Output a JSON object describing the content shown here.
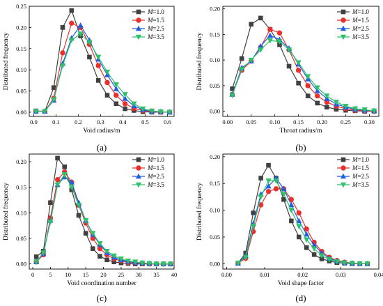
{
  "chart_data": [
    {
      "type": "line",
      "panel_label": "(a)",
      "xlabel": "Void radius/m",
      "ylabel": "Distributed frequency",
      "xlim": [
        -0.02,
        0.63
      ],
      "ylim": [
        -0.01,
        0.25
      ],
      "xticks": [
        "0.0",
        "0.1",
        "0.2",
        "0.3",
        "0.4",
        "0.5",
        "0.6"
      ],
      "yticks": [
        "0.00",
        "0.05",
        "0.10",
        "0.15",
        "0.20",
        "0.25"
      ],
      "legend_position": "top-right",
      "x": [
        0.01,
        0.05,
        0.09,
        0.13,
        0.17,
        0.21,
        0.25,
        0.29,
        0.33,
        0.37,
        0.41,
        0.45,
        0.49,
        0.53,
        0.57,
        0.61
      ],
      "series": [
        {
          "name": "M=1.0",
          "name_parts": [
            "M",
            "=1.0"
          ],
          "color": "#404040",
          "marker": "square",
          "values": [
            0.003,
            0.002,
            0.058,
            0.2,
            0.24,
            0.18,
            0.13,
            0.075,
            0.04,
            0.02,
            0.008,
            0.004,
            0.001,
            0.0,
            0.0,
            0.0
          ]
        },
        {
          "name": "M=1.5",
          "name_parts": [
            "M",
            "=1.5"
          ],
          "color": "#e8302d",
          "marker": "circle",
          "values": [
            0.002,
            0.002,
            0.033,
            0.14,
            0.21,
            0.2,
            0.16,
            0.11,
            0.07,
            0.04,
            0.02,
            0.009,
            0.004,
            0.001,
            0.0,
            0.0
          ]
        },
        {
          "name": "M=2.5",
          "name_parts": [
            "M",
            "=2.5"
          ],
          "color": "#1f5fe0",
          "marker": "triangle-up",
          "values": [
            0.002,
            0.002,
            0.028,
            0.115,
            0.175,
            0.205,
            0.17,
            0.125,
            0.088,
            0.055,
            0.032,
            0.015,
            0.006,
            0.002,
            0.001,
            0.0
          ]
        },
        {
          "name": "M=3.5",
          "name_parts": [
            "M",
            "=3.5"
          ],
          "color": "#2fc06a",
          "marker": "triangle-down",
          "values": [
            0.002,
            0.002,
            0.03,
            0.11,
            0.17,
            0.185,
            0.165,
            0.13,
            0.095,
            0.065,
            0.042,
            0.02,
            0.008,
            0.003,
            0.001,
            0.0
          ]
        }
      ]
    },
    {
      "type": "line",
      "panel_label": "(b)",
      "xlabel": "Throat radius/m",
      "ylabel": "Distributed frequency",
      "xlim": [
        -0.01,
        0.32
      ],
      "ylim": [
        -0.01,
        0.205
      ],
      "xticks": [
        "0.00",
        "0.05",
        "0.10",
        "0.15",
        "0.20",
        "0.25",
        "0.30"
      ],
      "yticks": [
        "0.00",
        "0.05",
        "0.10",
        "0.15",
        "0.20"
      ],
      "legend_position": "top-right",
      "x": [
        0.01,
        0.03,
        0.05,
        0.07,
        0.09,
        0.11,
        0.13,
        0.15,
        0.17,
        0.19,
        0.21,
        0.23,
        0.25,
        0.27,
        0.29,
        0.31
      ],
      "series": [
        {
          "name": "M=1.0",
          "name_parts": [
            "M",
            "=1.0"
          ],
          "color": "#404040",
          "marker": "square",
          "values": [
            0.044,
            0.103,
            0.17,
            0.182,
            0.16,
            0.13,
            0.088,
            0.055,
            0.03,
            0.016,
            0.008,
            0.004,
            0.002,
            0.001,
            0.0,
            0.0
          ]
        },
        {
          "name": "M=1.5",
          "name_parts": [
            "M",
            "=1.5"
          ],
          "color": "#e8302d",
          "marker": "circle",
          "values": [
            0.033,
            0.08,
            0.098,
            0.125,
            0.16,
            0.153,
            0.12,
            0.08,
            0.05,
            0.03,
            0.018,
            0.01,
            0.005,
            0.002,
            0.001,
            0.0
          ]
        },
        {
          "name": "M=2.5",
          "name_parts": [
            "M",
            "=2.5"
          ],
          "color": "#1f5fe0",
          "marker": "triangle-up",
          "values": [
            0.033,
            0.085,
            0.098,
            0.127,
            0.148,
            0.14,
            0.123,
            0.092,
            0.063,
            0.04,
            0.025,
            0.014,
            0.008,
            0.004,
            0.002,
            0.001
          ]
        },
        {
          "name": "M=3.5",
          "name_parts": [
            "M",
            "=3.5"
          ],
          "color": "#2fc06a",
          "marker": "triangle-down",
          "values": [
            0.031,
            0.082,
            0.1,
            0.12,
            0.138,
            0.136,
            0.12,
            0.095,
            0.068,
            0.046,
            0.03,
            0.018,
            0.01,
            0.005,
            0.003,
            0.001
          ]
        }
      ]
    },
    {
      "type": "line",
      "panel_label": "(c)",
      "xlabel": "Void coordination number",
      "ylabel": "Distributed frequency",
      "xlim": [
        -1,
        40
      ],
      "ylim": [
        -0.01,
        0.215
      ],
      "xticks": [
        "0",
        "5",
        "10",
        "15",
        "20",
        "25",
        "30",
        "35",
        "40"
      ],
      "yticks": [
        "0.00",
        "0.05",
        "0.10",
        "0.15",
        "0.20"
      ],
      "legend_position": "top-right",
      "x": [
        1,
        3,
        5,
        7,
        9,
        11,
        13,
        15,
        17,
        19,
        21,
        23,
        25,
        27,
        29,
        31,
        33,
        35,
        37,
        39
      ],
      "series": [
        {
          "name": "M=1.0",
          "name_parts": [
            "M",
            "=1.0"
          ],
          "color": "#404040",
          "marker": "square",
          "values": [
            0.014,
            0.025,
            0.12,
            0.207,
            0.19,
            0.145,
            0.095,
            0.06,
            0.03,
            0.015,
            0.008,
            0.004,
            0.002,
            0.001,
            0.0,
            0.0,
            0.0,
            0.0,
            0.0,
            0.0
          ]
        },
        {
          "name": "M=1.5",
          "name_parts": [
            "M",
            "=1.5"
          ],
          "color": "#e8302d",
          "marker": "circle",
          "values": [
            0.004,
            0.018,
            0.09,
            0.165,
            0.18,
            0.16,
            0.115,
            0.08,
            0.05,
            0.03,
            0.018,
            0.01,
            0.006,
            0.003,
            0.002,
            0.001,
            0.0,
            0.0,
            0.0,
            0.0
          ]
        },
        {
          "name": "M=2.5",
          "name_parts": [
            "M",
            "=2.5"
          ],
          "color": "#1f5fe0",
          "marker": "triangle-up",
          "values": [
            0.004,
            0.02,
            0.085,
            0.155,
            0.17,
            0.16,
            0.12,
            0.085,
            0.058,
            0.038,
            0.022,
            0.013,
            0.008,
            0.005,
            0.003,
            0.002,
            0.001,
            0.0,
            0.0,
            0.0
          ]
        },
        {
          "name": "M=3.5",
          "name_parts": [
            "M",
            "=3.5"
          ],
          "color": "#2fc06a",
          "marker": "triangle-down",
          "values": [
            0.004,
            0.022,
            0.082,
            0.155,
            0.175,
            0.15,
            0.115,
            0.085,
            0.06,
            0.04,
            0.025,
            0.016,
            0.01,
            0.006,
            0.004,
            0.002,
            0.001,
            0.0,
            0.0,
            0.0
          ]
        }
      ]
    },
    {
      "type": "line",
      "panel_label": "(d)",
      "xlabel": "Void shape factor",
      "ylabel": "Distributed frequency",
      "xlim": [
        -0.001,
        0.04
      ],
      "ylim": [
        -0.01,
        0.205
      ],
      "xticks": [
        "0.00",
        "0.01",
        "0.02",
        "0.03",
        "0.04"
      ],
      "yticks": [
        "0.00",
        "0.05",
        "0.10",
        "0.15",
        "0.20"
      ],
      "legend_position": "top-right",
      "x": [
        0.003,
        0.005,
        0.007,
        0.009,
        0.011,
        0.013,
        0.015,
        0.017,
        0.019,
        0.021,
        0.023,
        0.025,
        0.027,
        0.029,
        0.031,
        0.033,
        0.035,
        0.037
      ],
      "series": [
        {
          "name": "M=1.0",
          "name_parts": [
            "M",
            "=1.0"
          ],
          "color": "#404040",
          "marker": "square",
          "values": [
            0.001,
            0.02,
            0.095,
            0.16,
            0.184,
            0.16,
            0.12,
            0.08,
            0.05,
            0.03,
            0.017,
            0.009,
            0.005,
            0.002,
            0.001,
            0.0,
            0.0,
            0.0
          ]
        },
        {
          "name": "M=1.5",
          "name_parts": [
            "M",
            "=1.5"
          ],
          "color": "#e8302d",
          "marker": "circle",
          "values": [
            0.001,
            0.01,
            0.06,
            0.11,
            0.135,
            0.14,
            0.14,
            0.12,
            0.095,
            0.065,
            0.04,
            0.023,
            0.012,
            0.006,
            0.003,
            0.001,
            0.0,
            0.0
          ]
        },
        {
          "name": "M=2.5",
          "name_parts": [
            "M",
            "=2.5"
          ],
          "color": "#1f5fe0",
          "marker": "triangle-up",
          "values": [
            0.001,
            0.015,
            0.075,
            0.13,
            0.145,
            0.16,
            0.14,
            0.11,
            0.08,
            0.055,
            0.035,
            0.02,
            0.01,
            0.005,
            0.002,
            0.001,
            0.0,
            0.0
          ]
        },
        {
          "name": "M=3.5",
          "name_parts": [
            "M",
            "=3.5"
          ],
          "color": "#2fc06a",
          "marker": "triangle-down",
          "values": [
            0.001,
            0.012,
            0.07,
            0.125,
            0.155,
            0.155,
            0.13,
            0.1,
            0.07,
            0.045,
            0.028,
            0.015,
            0.008,
            0.004,
            0.002,
            0.001,
            0.0,
            0.0
          ]
        }
      ]
    }
  ]
}
